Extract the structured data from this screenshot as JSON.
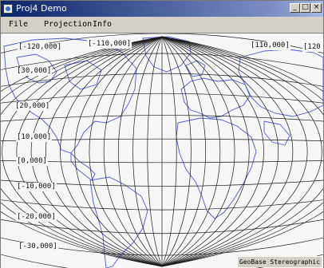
{
  "window": {
    "title": "Proj4 Demo"
  },
  "titlebar": {
    "buttons": [
      "minimize-icon",
      "maximize-icon",
      "close-icon"
    ]
  },
  "menu": {
    "items": [
      "File",
      "Projection",
      "Info"
    ]
  },
  "map": {
    "projection": "GeoBase Stereographic",
    "longitude_labels": [
      "[-120,000]",
      "[-110,000]",
      "[110,000]",
      "[120"
    ],
    "latitude_labels": [
      "[30,000]",
      "[20,000]",
      "[10,000]",
      "[0,000]",
      "[-10,000]",
      "[-20,000]",
      "[-30,000]"
    ],
    "colors": {
      "grid": "#1a1a1a",
      "coastline": "#4a5bd0",
      "background": "#f6f6f6"
    }
  }
}
